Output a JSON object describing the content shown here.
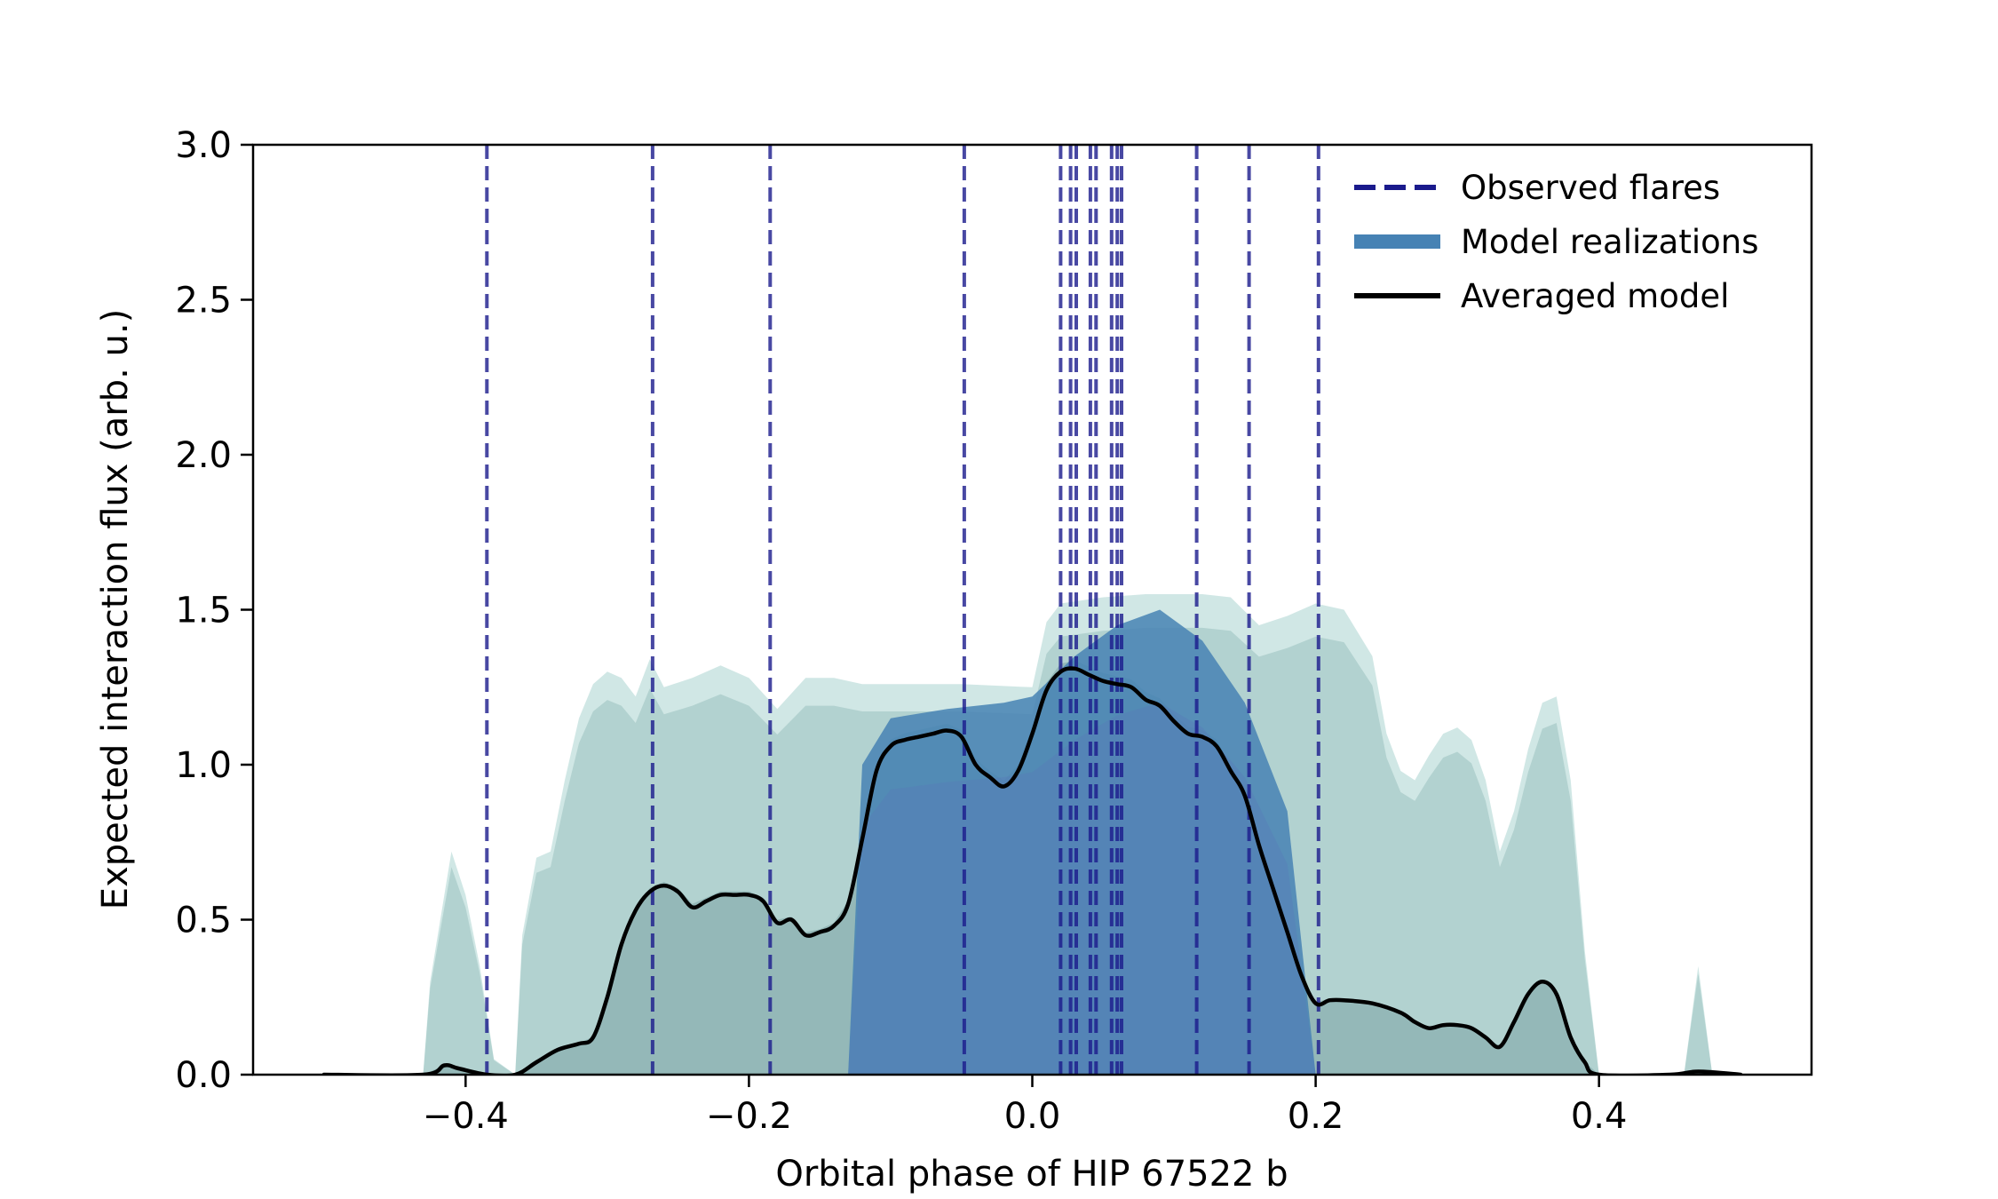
{
  "chart_data": {
    "type": "line",
    "title": "",
    "xlabel": "Orbital phase of HIP 67522 b",
    "ylabel": "Expected interaction flux (arb. u.)",
    "xlim": [
      -0.55,
      0.55
    ],
    "ylim": [
      0.0,
      3.0
    ],
    "grid": false,
    "legend_position": "top-right",
    "x_ticks": [
      -0.4,
      -0.2,
      0.0,
      0.2,
      0.4
    ],
    "x_tick_labels": [
      "−0.4",
      "−0.2",
      "0.0",
      "0.2",
      "0.4"
    ],
    "y_ticks": [
      0.0,
      0.5,
      1.0,
      1.5,
      2.0,
      2.5,
      3.0
    ],
    "y_tick_labels": [
      "0.0",
      "0.5",
      "1.0",
      "1.5",
      "2.0",
      "2.5",
      "3.0"
    ],
    "legend": [
      {
        "label": "Observed flares",
        "style": "dashed",
        "color": "#1a1a8c"
      },
      {
        "label": "Model realizations",
        "style": "band",
        "color": "#4682b4"
      },
      {
        "label": "Averaged model",
        "style": "solid",
        "color": "#000000"
      }
    ],
    "colors": {
      "flare": "#1a1a8c",
      "model_core": "#4682b4",
      "model_envelope": "#5f9ea0",
      "averaged": "#000000"
    },
    "observed_flares_phase": [
      -0.385,
      -0.268,
      -0.185,
      -0.048,
      0.02,
      0.027,
      0.031,
      0.041,
      0.045,
      0.056,
      0.06,
      0.063,
      0.116,
      0.153,
      0.202
    ],
    "averaged_model": {
      "x": [
        -0.5,
        -0.43,
        -0.415,
        -0.405,
        -0.385,
        -0.365,
        -0.35,
        -0.335,
        -0.32,
        -0.31,
        -0.3,
        -0.29,
        -0.28,
        -0.27,
        -0.26,
        -0.25,
        -0.24,
        -0.23,
        -0.22,
        -0.21,
        -0.2,
        -0.19,
        -0.18,
        -0.17,
        -0.16,
        -0.15,
        -0.14,
        -0.13,
        -0.12,
        -0.11,
        -0.1,
        -0.09,
        -0.08,
        -0.07,
        -0.06,
        -0.05,
        -0.04,
        -0.03,
        -0.02,
        -0.01,
        0.0,
        0.01,
        0.02,
        0.03,
        0.04,
        0.05,
        0.06,
        0.07,
        0.08,
        0.09,
        0.1,
        0.11,
        0.12,
        0.13,
        0.14,
        0.15,
        0.16,
        0.17,
        0.18,
        0.19,
        0.2,
        0.21,
        0.22,
        0.24,
        0.26,
        0.27,
        0.28,
        0.29,
        0.3,
        0.31,
        0.32,
        0.33,
        0.34,
        0.35,
        0.36,
        0.37,
        0.38,
        0.39,
        0.4,
        0.45,
        0.47,
        0.5
      ],
      "y": [
        0.0,
        0.0,
        0.03,
        0.02,
        0.0,
        0.0,
        0.04,
        0.08,
        0.1,
        0.12,
        0.25,
        0.42,
        0.53,
        0.59,
        0.61,
        0.59,
        0.54,
        0.56,
        0.58,
        0.58,
        0.58,
        0.56,
        0.49,
        0.5,
        0.45,
        0.46,
        0.48,
        0.55,
        0.76,
        0.98,
        1.06,
        1.08,
        1.09,
        1.1,
        1.11,
        1.09,
        1.0,
        0.96,
        0.93,
        0.98,
        1.1,
        1.24,
        1.3,
        1.31,
        1.29,
        1.27,
        1.26,
        1.25,
        1.21,
        1.19,
        1.14,
        1.1,
        1.09,
        1.06,
        0.98,
        0.9,
        0.74,
        0.6,
        0.46,
        0.32,
        0.23,
        0.24,
        0.24,
        0.23,
        0.2,
        0.17,
        0.15,
        0.16,
        0.16,
        0.15,
        0.12,
        0.09,
        0.17,
        0.26,
        0.3,
        0.26,
        0.12,
        0.04,
        0.0,
        0.0,
        0.01,
        0.0
      ]
    },
    "model_realizations_envelope": {
      "description": "upper envelope of many semi-transparent model realizations",
      "x": [
        -0.5,
        -0.43,
        -0.425,
        -0.41,
        -0.4,
        -0.39,
        -0.38,
        -0.365,
        -0.36,
        -0.35,
        -0.34,
        -0.33,
        -0.32,
        -0.31,
        -0.3,
        -0.29,
        -0.28,
        -0.27,
        -0.26,
        -0.24,
        -0.22,
        -0.2,
        -0.18,
        -0.16,
        -0.14,
        -0.12,
        -0.1,
        -0.05,
        0.0,
        0.01,
        0.02,
        0.05,
        0.08,
        0.1,
        0.12,
        0.14,
        0.16,
        0.18,
        0.2,
        0.22,
        0.24,
        0.25,
        0.26,
        0.27,
        0.28,
        0.29,
        0.3,
        0.31,
        0.32,
        0.33,
        0.34,
        0.35,
        0.36,
        0.37,
        0.38,
        0.39,
        0.4,
        0.46,
        0.47,
        0.48,
        0.5
      ],
      "y": [
        0.0,
        0.0,
        0.3,
        0.72,
        0.58,
        0.35,
        0.05,
        0.0,
        0.45,
        0.7,
        0.72,
        0.95,
        1.15,
        1.26,
        1.3,
        1.28,
        1.22,
        1.34,
        1.25,
        1.28,
        1.32,
        1.28,
        1.18,
        1.28,
        1.28,
        1.26,
        1.26,
        1.26,
        1.25,
        1.46,
        1.52,
        1.54,
        1.55,
        1.55,
        1.55,
        1.54,
        1.45,
        1.48,
        1.52,
        1.5,
        1.35,
        1.1,
        0.98,
        0.95,
        1.03,
        1.1,
        1.12,
        1.08,
        0.95,
        0.72,
        0.85,
        1.05,
        1.2,
        1.22,
        0.95,
        0.4,
        0.0,
        0.0,
        0.35,
        0.0,
        0.0
      ]
    },
    "model_realizations_core": {
      "description": "densely overlapping core region of model realizations",
      "x": [
        -0.13,
        -0.12,
        -0.1,
        -0.06,
        -0.02,
        0.0,
        0.03,
        0.06,
        0.09,
        0.12,
        0.15,
        0.18,
        0.2
      ],
      "y": [
        0.0,
        1.0,
        1.15,
        1.18,
        1.2,
        1.22,
        1.35,
        1.45,
        1.5,
        1.4,
        1.2,
        0.85,
        0.0
      ]
    }
  }
}
